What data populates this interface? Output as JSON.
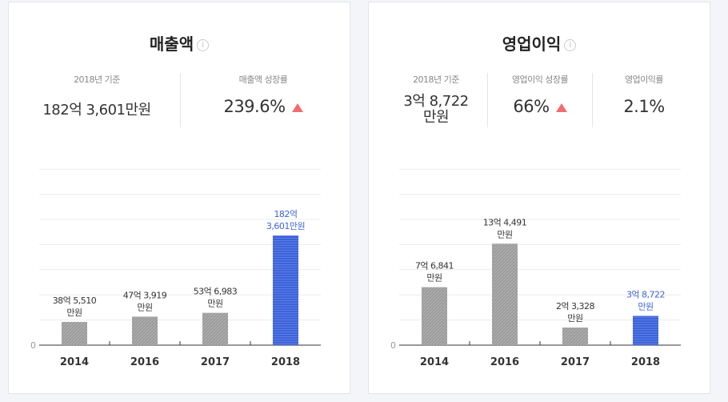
{
  "cards": [
    {
      "title": "매출액",
      "info_icon": "i",
      "stats": [
        {
          "label": "2018년 기준",
          "value": "182억 3,601만원"
        },
        {
          "label": "매출액 성장률",
          "value": "239.6%",
          "trend": "up"
        }
      ]
    },
    {
      "title": "영업이익",
      "info_icon": "i",
      "stats": [
        {
          "label": "2018년 기준",
          "value_line1": "3억 8,722",
          "value_line2": "만원"
        },
        {
          "label": "영업이익 성장률",
          "value": "66%",
          "trend": "up"
        },
        {
          "label": "영업이익률",
          "value": "2.1%"
        }
      ]
    }
  ],
  "colors": {
    "bar": "#999999",
    "highlight": "#3d63d9",
    "trend_up": "#f16c6f"
  },
  "chart_data": [
    {
      "type": "bar",
      "title": "매출액",
      "unit": "억원",
      "y_tick": "0",
      "categories": [
        "2014",
        "2016",
        "2017",
        "2018"
      ],
      "values": [
        38.551,
        47.3919,
        53.6983,
        182.3601
      ],
      "labels": [
        [
          "38억 5,510",
          "만원"
        ],
        [
          "47억 3,919",
          "만원"
        ],
        [
          "53억 6,983",
          "만원"
        ],
        [
          "182억",
          "3,601만원"
        ]
      ],
      "highlight_index": 3
    },
    {
      "type": "bar",
      "title": "영업이익",
      "unit": "억원",
      "y_tick": "0",
      "categories": [
        "2014",
        "2016",
        "2017",
        "2018"
      ],
      "values": [
        7.6841,
        13.4491,
        2.3328,
        3.8722
      ],
      "labels": [
        [
          "7억 6,841",
          "만원"
        ],
        [
          "13억 4,491",
          "만원"
        ],
        [
          "2억 3,328",
          "만원"
        ],
        [
          "3억 8,722",
          "만원"
        ]
      ],
      "highlight_index": 3
    }
  ]
}
